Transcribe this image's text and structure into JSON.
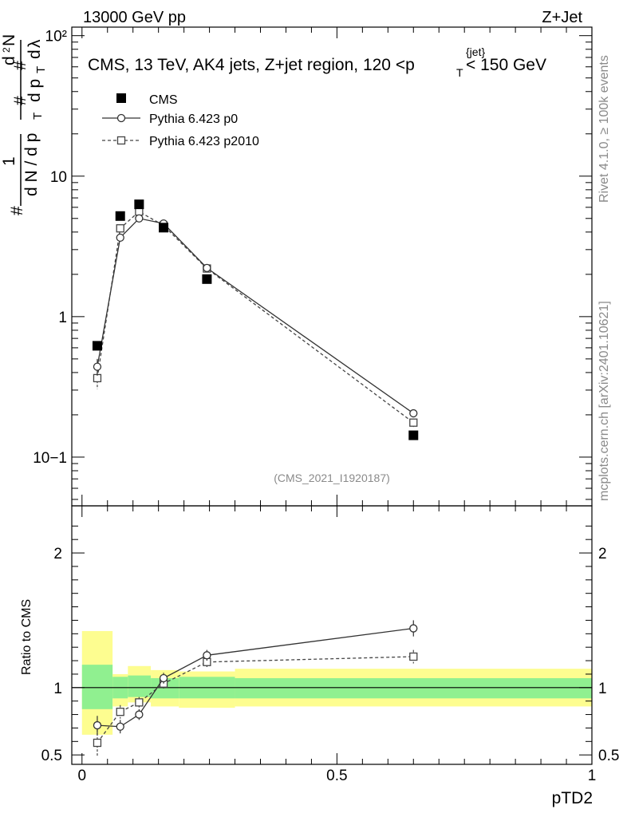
{
  "header": {
    "left": "13000 GeV pp",
    "right": "Z+Jet"
  },
  "side_labels": {
    "rivet": "Rivet 4.1.0, ≥ 100k events",
    "mcplots": "mcplots.cern.ch [arXiv:2401.10621]"
  },
  "colors": {
    "band_inner": "#90f090",
    "band_outer": "#fdfd90",
    "series_solid": "#333333",
    "series_dashed": "#444444"
  },
  "chart_data": [
    {
      "type": "scatter",
      "panel": "main",
      "title": "CMS, 13 TeV, AK4 jets, Z+jet region, 120 <p_T^{jet}< 150 GeV",
      "ylabel": "1/(dN/dp_T) d²N/(dp_T dλ)",
      "yscale": "log",
      "ylim": [
        0.045,
        115
      ],
      "xlim": [
        -0.02,
        1.0
      ],
      "ytick_labels": [
        "10−1",
        "1",
        "10",
        "10²"
      ],
      "ytick_values": [
        0.1,
        1,
        10,
        100
      ],
      "watermark": "(CMS_2021_I1920187)",
      "legend_position": "top-left",
      "series": [
        {
          "name": "CMS",
          "style": "filled-square",
          "x": [
            0.03,
            0.075,
            0.112,
            0.16,
            0.245,
            0.65
          ],
          "y": [
            0.62,
            5.2,
            6.3,
            4.3,
            1.85,
            0.143
          ]
        },
        {
          "name": "Pythia 6.423 p0",
          "style": "solid-circle",
          "x": [
            0.03,
            0.075,
            0.112,
            0.16,
            0.245,
            0.65
          ],
          "y": [
            0.44,
            3.65,
            5.0,
            4.6,
            2.22,
            0.205
          ],
          "yerr": [
            0.06,
            0.2,
            0.25,
            0.2,
            0.1,
            0.012
          ]
        },
        {
          "name": "Pythia 6.423 p2010",
          "style": "dashed-square",
          "x": [
            0.03,
            0.075,
            0.112,
            0.16,
            0.245,
            0.65
          ],
          "y": [
            0.365,
            4.25,
            5.6,
            4.45,
            2.2,
            0.176
          ],
          "yerr": [
            0.06,
            0.2,
            0.25,
            0.2,
            0.1,
            0.012
          ]
        }
      ]
    },
    {
      "type": "scatter",
      "panel": "ratio",
      "ylabel": "Ratio to CMS",
      "xlabel": "pTD2",
      "ylim": [
        0.43,
        2.35
      ],
      "xlim": [
        -0.02,
        1.0
      ],
      "xtick_labels": [
        "0",
        "0.5",
        "1"
      ],
      "xtick_values": [
        0,
        0.5,
        1
      ],
      "ytick_labels": [
        "0.5",
        "1",
        "2"
      ],
      "ytick_values": [
        0.5,
        1,
        2
      ],
      "bands": {
        "edges": [
          0.0,
          0.06,
          0.09,
          0.135,
          0.19,
          0.3,
          1.0
        ],
        "inner_lo": [
          0.84,
          0.92,
          0.93,
          0.92,
          0.92,
          0.92
        ],
        "inner_hi": [
          1.17,
          1.08,
          1.09,
          1.07,
          1.08,
          1.07
        ],
        "outer_lo": [
          0.65,
          0.86,
          0.89,
          0.86,
          0.85,
          0.86
        ],
        "outer_hi": [
          1.42,
          1.1,
          1.16,
          1.13,
          1.12,
          1.14
        ]
      },
      "series": [
        {
          "name": "Pythia 6.423 p0",
          "style": "solid-circle",
          "x": [
            0.03,
            0.075,
            0.112,
            0.16,
            0.245,
            0.65
          ],
          "y": [
            0.72,
            0.71,
            0.8,
            1.07,
            1.24,
            1.44
          ],
          "yerr": [
            0.07,
            0.05,
            0.04,
            0.04,
            0.04,
            0.06
          ]
        },
        {
          "name": "Pythia 6.423 p2010",
          "style": "dashed-square",
          "x": [
            0.03,
            0.075,
            0.112,
            0.16,
            0.245,
            0.65
          ],
          "y": [
            0.59,
            0.82,
            0.89,
            1.03,
            1.19,
            1.23
          ],
          "yerr": [
            0.1,
            0.05,
            0.04,
            0.04,
            0.04,
            0.05
          ]
        }
      ]
    }
  ]
}
